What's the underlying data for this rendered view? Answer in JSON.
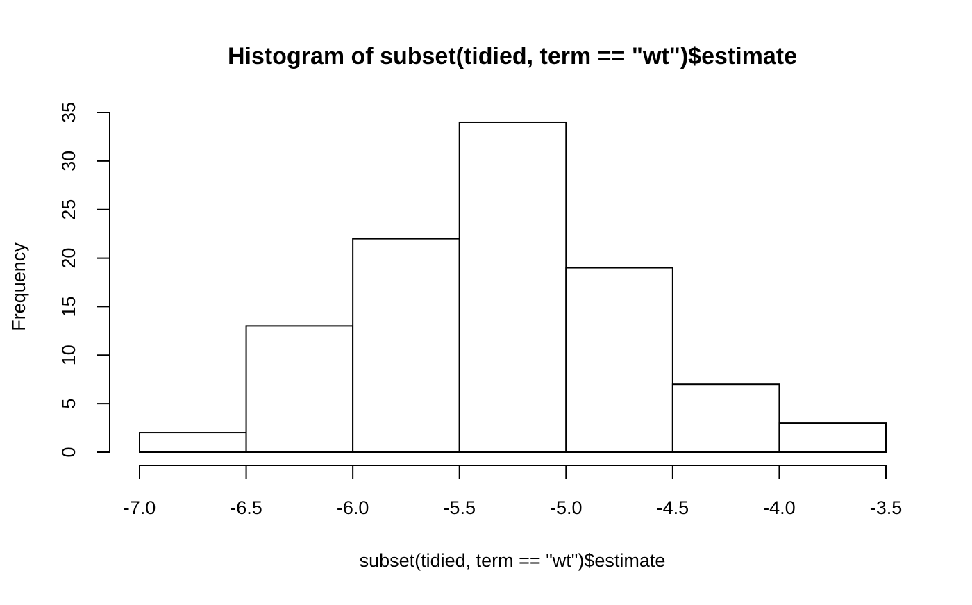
{
  "chart_data": {
    "type": "bar",
    "title": "Histogram of subset(tidied, term == \"wt\")$estimate",
    "xlabel": "subset(tidied, term == \"wt\")$estimate",
    "ylabel": "Frequency",
    "bins": [
      {
        "x0": -7.0,
        "x1": -6.5,
        "count": 2
      },
      {
        "x0": -6.5,
        "x1": -6.0,
        "count": 13
      },
      {
        "x0": -6.0,
        "x1": -5.5,
        "count": 22
      },
      {
        "x0": -5.5,
        "x1": -5.0,
        "count": 34
      },
      {
        "x0": -5.0,
        "x1": -4.5,
        "count": 19
      },
      {
        "x0": -4.5,
        "x1": -4.0,
        "count": 7
      },
      {
        "x0": -4.0,
        "x1": -3.5,
        "count": 3
      }
    ],
    "xlim": [
      -7.0,
      -3.5
    ],
    "ylim": [
      0,
      35
    ],
    "x_ticks": [
      -7.0,
      -6.5,
      -6.0,
      -5.5,
      -5.0,
      -4.5,
      -4.0,
      -3.5
    ],
    "x_tick_labels": [
      "-7.0",
      "-6.5",
      "-6.0",
      "-5.5",
      "-5.0",
      "-4.5",
      "-4.0",
      "-3.5"
    ],
    "y_ticks": [
      0,
      5,
      10,
      15,
      20,
      25,
      30,
      35
    ],
    "y_tick_labels": [
      "0",
      "5",
      "10",
      "15",
      "20",
      "25",
      "30",
      "35"
    ],
    "grid": false,
    "bar_fill": "#ffffff",
    "bar_stroke": "#000000"
  }
}
